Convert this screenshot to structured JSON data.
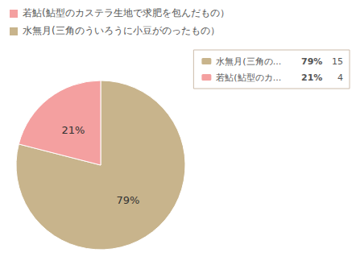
{
  "chart_data": {
    "type": "pie",
    "categories": [
      "水無月(三角の...",
      "若鮎(鮎型のカ..."
    ],
    "values": [
      79,
      21
    ],
    "value_labels": [
      "79%",
      "21%"
    ],
    "counts": [
      15,
      4
    ],
    "colors": [
      "#c8b48c",
      "#f4a0a0"
    ],
    "data_labels": true,
    "legend": "top-right",
    "annotations": [
      {
        "text": "若鮎(鮎型のカステラ生地で求肥を包んだもの）",
        "color": "#f4a0a0"
      },
      {
        "text": "水無月(三角のういろうに小豆がのったもの）",
        "color": "#c8b48c"
      }
    ]
  }
}
